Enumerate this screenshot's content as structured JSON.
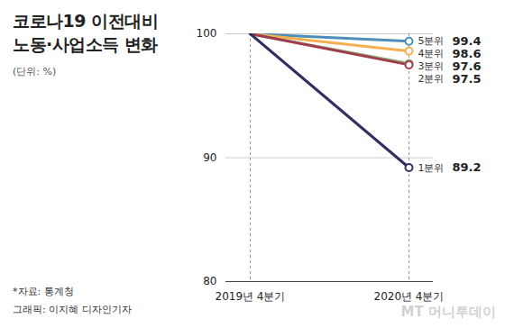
{
  "chart_data": {
    "type": "line",
    "title": "코로나19 이전대비\n노동·사업소득 변화",
    "subtitle": "(단위: %)",
    "source": "*자료: 통계청",
    "credit": "그래픽: 이지혜 디자인기자",
    "watermark": "MT 머니투데이",
    "categories": [
      "2019년 4분기",
      "2020년 4분기"
    ],
    "series": [
      {
        "name": "5분위",
        "color": "#4b8fba",
        "values": [
          100,
          99.4
        ]
      },
      {
        "name": "4분위",
        "color": "#f2b04e",
        "values": [
          100,
          98.6
        ]
      },
      {
        "name": "3분위",
        "color": "#8fb57e",
        "values": [
          100,
          97.6
        ]
      },
      {
        "name": "2분위",
        "color": "#a23c4c",
        "values": [
          100,
          97.5
        ]
      },
      {
        "name": "1분위",
        "color": "#2f2f62",
        "values": [
          100,
          89.2
        ]
      }
    ],
    "ylim": [
      80,
      100
    ],
    "yticks": [
      80,
      90,
      100
    ],
    "grid": true,
    "data_labels": true,
    "marker": "circle"
  }
}
